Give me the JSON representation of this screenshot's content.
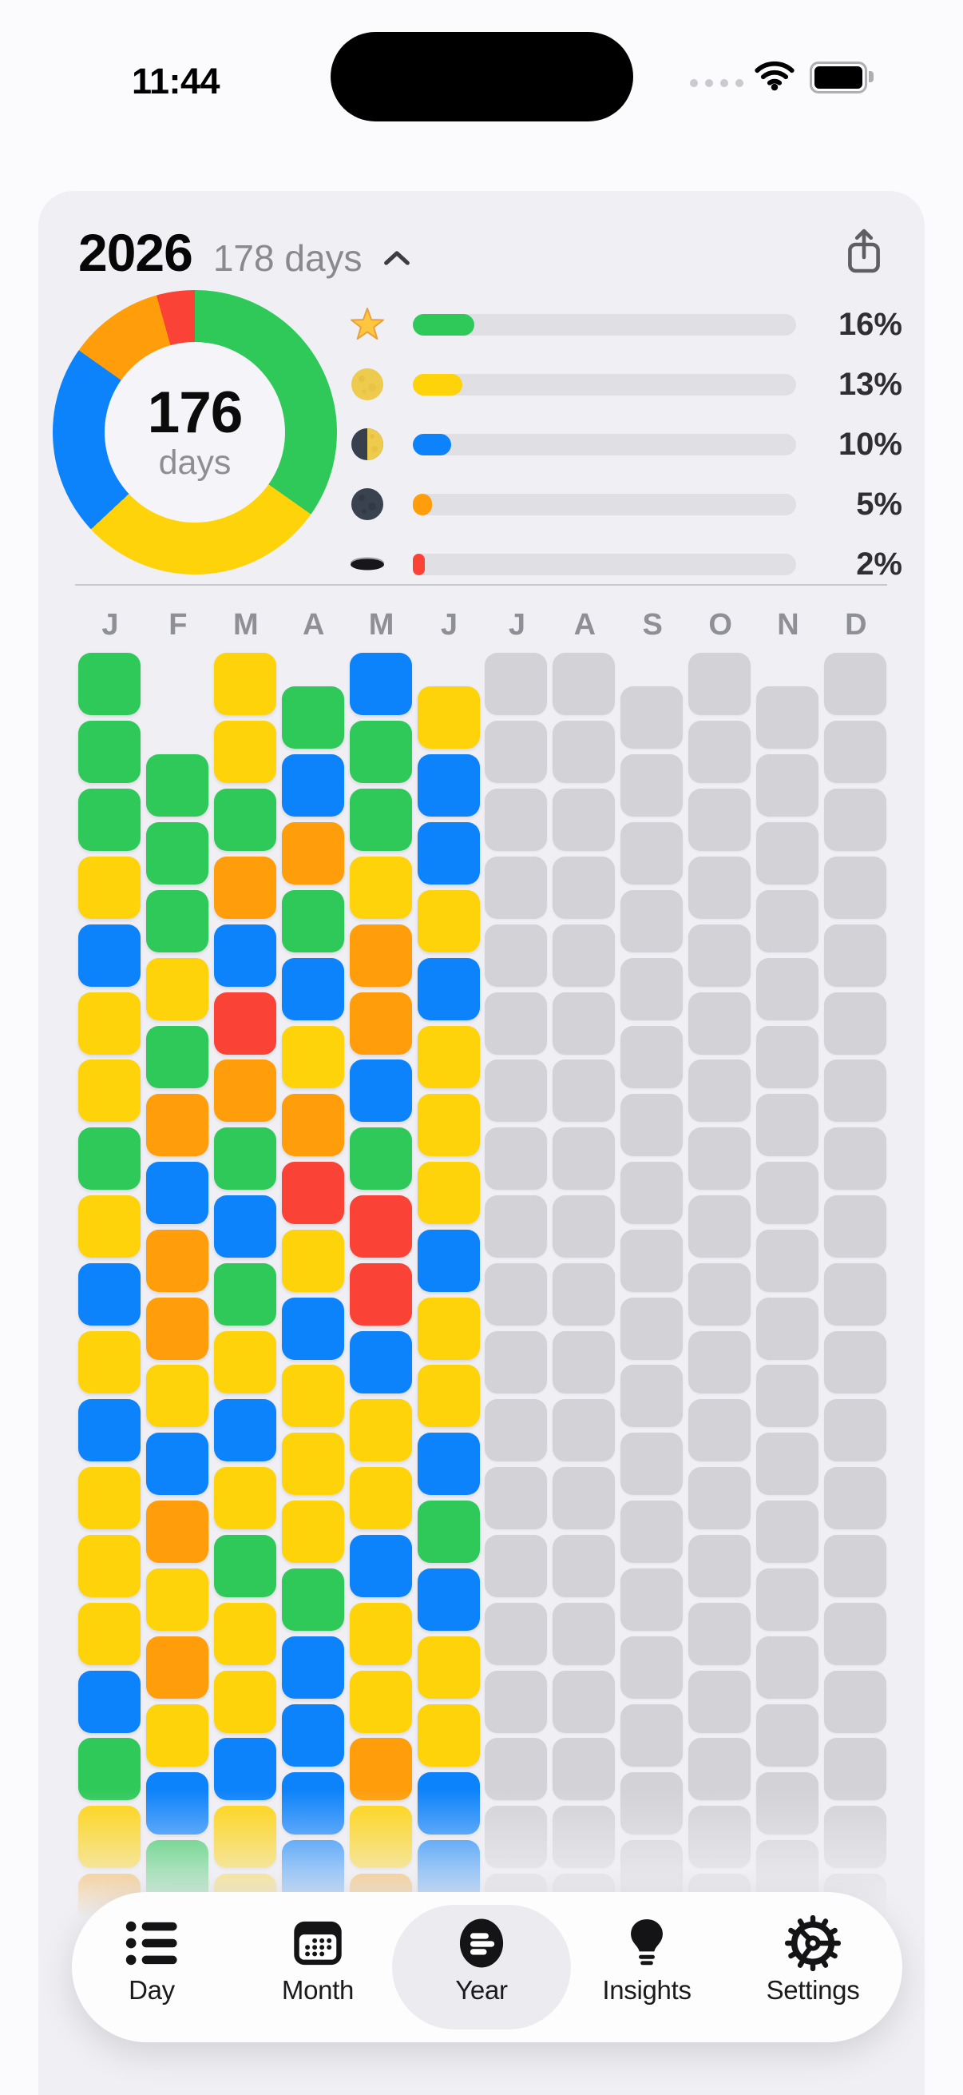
{
  "status_bar": {
    "time": "11:44",
    "cellular_icon": "cellular-signal-dots",
    "wifi_icon": "wifi",
    "battery_icon": "battery-full"
  },
  "header": {
    "year": "2026",
    "days_label": "178 days",
    "collapse_icon": "chevron-up",
    "share_icon": "share"
  },
  "summary": {
    "donut": {
      "center_value": "176",
      "center_label": "days"
    },
    "legend": [
      {
        "icon": "star-icon",
        "percent_label": "16%",
        "value": 16,
        "color": "#2FC95A"
      },
      {
        "icon": "full-moon-icon",
        "percent_label": "13%",
        "value": 13,
        "color": "#FFD30A"
      },
      {
        "icon": "last-quarter-moon-icon",
        "percent_label": "10%",
        "value": 10,
        "color": "#0C82FB"
      },
      {
        "icon": "new-moon-icon",
        "percent_label": "5%",
        "value": 5,
        "color": "#FF9D0A"
      },
      {
        "icon": "hole-icon",
        "percent_label": "2%",
        "value": 2,
        "color": "#FB4236"
      }
    ]
  },
  "chart_data": {
    "type": "pie",
    "title": "2026 mood distribution donut",
    "center_value": 176,
    "center_label": "days",
    "labels": [
      "star",
      "full-moon",
      "last-quarter-moon",
      "new-moon",
      "hole"
    ],
    "values": [
      16,
      13,
      10,
      5,
      2
    ],
    "unit": "percent-of-year",
    "colors": [
      "#2FC95A",
      "#FFD30A",
      "#0C82FB",
      "#FF9D0A",
      "#FB4236"
    ],
    "legend_position": "right"
  },
  "calendar": {
    "palette": {
      "g": "#2FC95A",
      "y": "#FFD30A",
      "b": "#0C82FB",
      "o": "#FF9D0A",
      "r": "#FB4236",
      "x": "#D2D2D7"
    },
    "months": [
      {
        "label": "J",
        "offset_rows": 0,
        "cells": "gggybyygybybyyybgyo"
      },
      {
        "label": "F",
        "offset_rows": 1.5,
        "cells": "gggygobooyboyoybg"
      },
      {
        "label": "M",
        "offset_rows": 0,
        "cells": "yygobrogbgybygyybyy"
      },
      {
        "label": "A",
        "offset_rows": 0.5,
        "cells": "gbogbyorybyyygbbbb"
      },
      {
        "label": "M",
        "offset_rows": 0,
        "cells": "bggyoobgrrbyybyyoyo"
      },
      {
        "label": "J",
        "offset_rows": 0.5,
        "cells": "ybbybyyybyybgbyybb"
      },
      {
        "label": "J",
        "offset_rows": 0,
        "cells": "xxxxxxxxxxxxxxxxxxx"
      },
      {
        "label": "A",
        "offset_rows": 0,
        "cells": "xxxxxxxxxxxxxxxxxxx"
      },
      {
        "label": "S",
        "offset_rows": 0.5,
        "cells": "xxxxxxxxxxxxxxxxxx"
      },
      {
        "label": "O",
        "offset_rows": 0,
        "cells": "xxxxxxxxxxxxxxxxxxx"
      },
      {
        "label": "N",
        "offset_rows": 0.5,
        "cells": "xxxxxxxxxxxxxxxxxx"
      },
      {
        "label": "D",
        "offset_rows": 0,
        "cells": "xxxxxxxxxxxxxxxxxxx"
      }
    ]
  },
  "tab_bar": {
    "active_index": 2,
    "items": [
      {
        "label": "Day",
        "icon": "day-list-icon"
      },
      {
        "label": "Month",
        "icon": "month-calendar-icon"
      },
      {
        "label": "Year",
        "icon": "year-grid-icon"
      },
      {
        "label": "Insights",
        "icon": "insights-bulb-icon"
      },
      {
        "label": "Settings",
        "icon": "settings-gear-icon"
      }
    ]
  }
}
